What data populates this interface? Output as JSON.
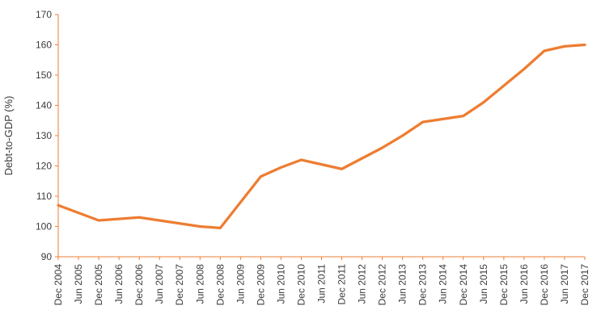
{
  "chart_data": {
    "type": "line",
    "ylabel": "Debt-to-GDP (%)",
    "categories": [
      "Dec 2004",
      "Jun 2005",
      "Dec 2005",
      "Jun 2006",
      "Dec 2006",
      "Jun 2007",
      "Dec 2007",
      "Jun 2008",
      "Dec 2008",
      "Jun 2009",
      "Dec 2009",
      "Jun 2010",
      "Dec 2010",
      "Jun 2011",
      "Dec 2011",
      "Jun 2012",
      "Dec 2012",
      "Jun 2013",
      "Dec 2013",
      "Jun 2014",
      "Dec 2014",
      "Jun 2015",
      "Dec 2015",
      "Jun 2016",
      "Dec 2016",
      "Jun 2017",
      "Dec 2017"
    ],
    "values": [
      107,
      104.5,
      102,
      102.5,
      103,
      102,
      101,
      100,
      99.5,
      108,
      116.5,
      119.5,
      122,
      120.5,
      119,
      122.5,
      126,
      130,
      134.5,
      135.5,
      136.5,
      141,
      146.5,
      152,
      158,
      159.5,
      160
    ],
    "ylim": [
      90,
      170
    ],
    "ytick_step": 10,
    "grid": false,
    "legend": "none",
    "line_color": "#ED7D31",
    "axis_color": "#ED7D31",
    "text_color": "#3B3B3B"
  }
}
